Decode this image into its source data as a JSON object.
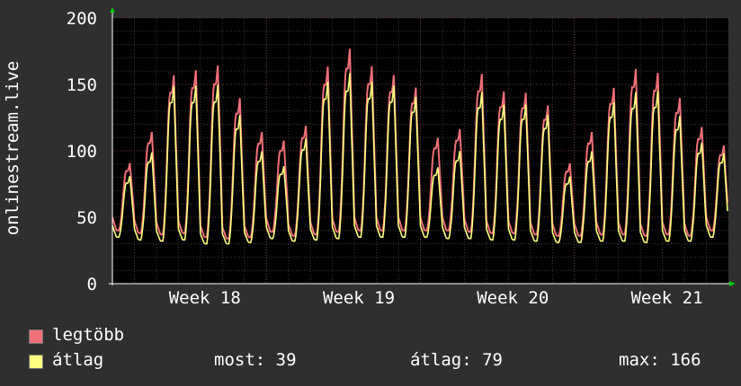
{
  "chart_data": {
    "type": "line",
    "ylabel": "onlinestream.live",
    "ylim": [
      0,
      200
    ],
    "y_ticks": [
      0,
      50,
      100,
      150,
      200
    ],
    "x_ticks": [
      "Week 18",
      "Week 19",
      "Week 20",
      "Week 21"
    ],
    "grid": true,
    "legend_placement": "bottom",
    "days": 28,
    "series": [
      {
        "name": "legtöbb",
        "color": "#f07078",
        "daily_peak": [
          93,
          118,
          163,
          167,
          171,
          145,
          118,
          111,
          123,
          170,
          184,
          170,
          163,
          153,
          113,
          120,
          164,
          150,
          149,
          139,
          93,
          118,
          153,
          168,
          165,
          145,
          122,
          107
        ],
        "daily_min": [
          40,
          38,
          37,
          38,
          35,
          34,
          35,
          39,
          36,
          37,
          39,
          40,
          40,
          40,
          40,
          40,
          39,
          38,
          38,
          37,
          36,
          36,
          37,
          37,
          36,
          37,
          36,
          40
        ]
      },
      {
        "name": "átlag",
        "color": "#ffff80",
        "daily_peak": [
          83,
          102,
          155,
          155,
          156,
          132,
          103,
          91,
          113,
          158,
          165,
          158,
          155,
          146,
          90,
          103,
          150,
          140,
          140,
          132,
          83,
          103,
          142,
          150,
          151,
          131,
          110,
          101
        ],
        "daily_min": [
          35,
          33,
          32,
          33,
          30,
          30,
          31,
          34,
          32,
          33,
          34,
          35,
          35,
          35,
          35,
          34,
          34,
          33,
          33,
          32,
          31,
          31,
          32,
          32,
          31,
          32,
          32,
          35
        ]
      }
    ],
    "stats": {
      "most_label": "most:",
      "most_value": "39",
      "atlag_label": "átlag:",
      "atlag_value": "79",
      "max_label": "max:",
      "max_value": "166"
    }
  }
}
